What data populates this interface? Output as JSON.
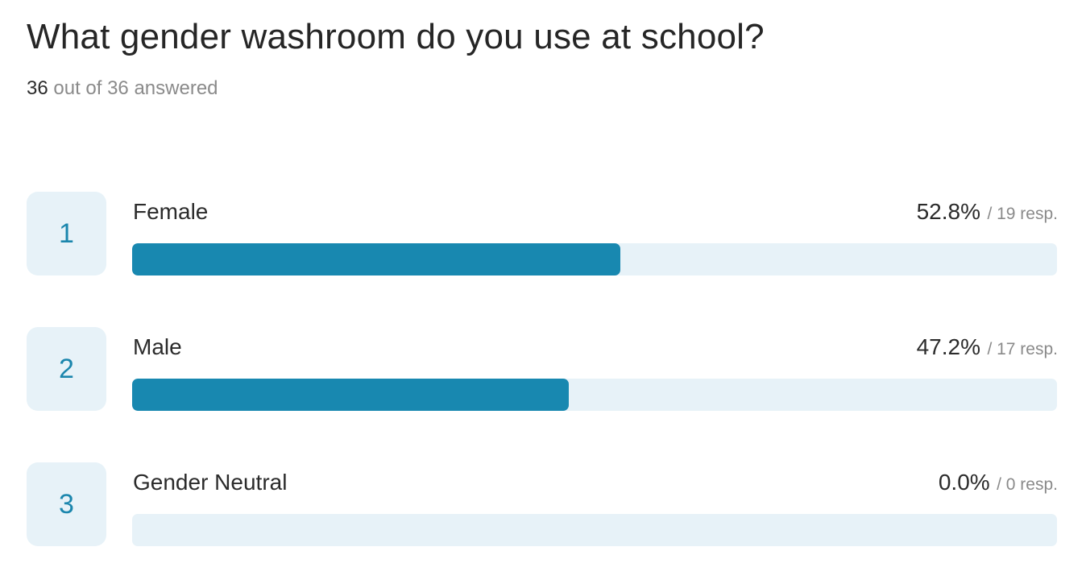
{
  "question": {
    "title": "What gender washroom do you use at school?",
    "answered_count": "36",
    "answered_suffix": " out of 36 answered"
  },
  "options": [
    {
      "number": "1",
      "label": "Female",
      "percent_text": "52.8%",
      "resp_text": "/ 19 resp."
    },
    {
      "number": "2",
      "label": "Male",
      "percent_text": "47.2%",
      "resp_text": "/ 17 resp."
    },
    {
      "number": "3",
      "label": "Gender Neutral",
      "percent_text": "0.0%",
      "resp_text": "/ 0 resp."
    }
  ],
  "colors": {
    "bar_fill": "#1888b0",
    "bar_track": "#e7f2f8",
    "badge_background": "#e7f2f8",
    "badge_number": "#1b86ad"
  },
  "chart_data": {
    "type": "bar",
    "orientation": "horizontal",
    "categories": [
      "Female",
      "Male",
      "Gender Neutral"
    ],
    "values": [
      52.8,
      47.2,
      0.0
    ],
    "responses": [
      19,
      17,
      0
    ],
    "total_responses": 36,
    "value_unit": "%",
    "title": "What gender washroom do you use at school?",
    "xlim": [
      0,
      100
    ],
    "grid": false,
    "legend": "none"
  }
}
